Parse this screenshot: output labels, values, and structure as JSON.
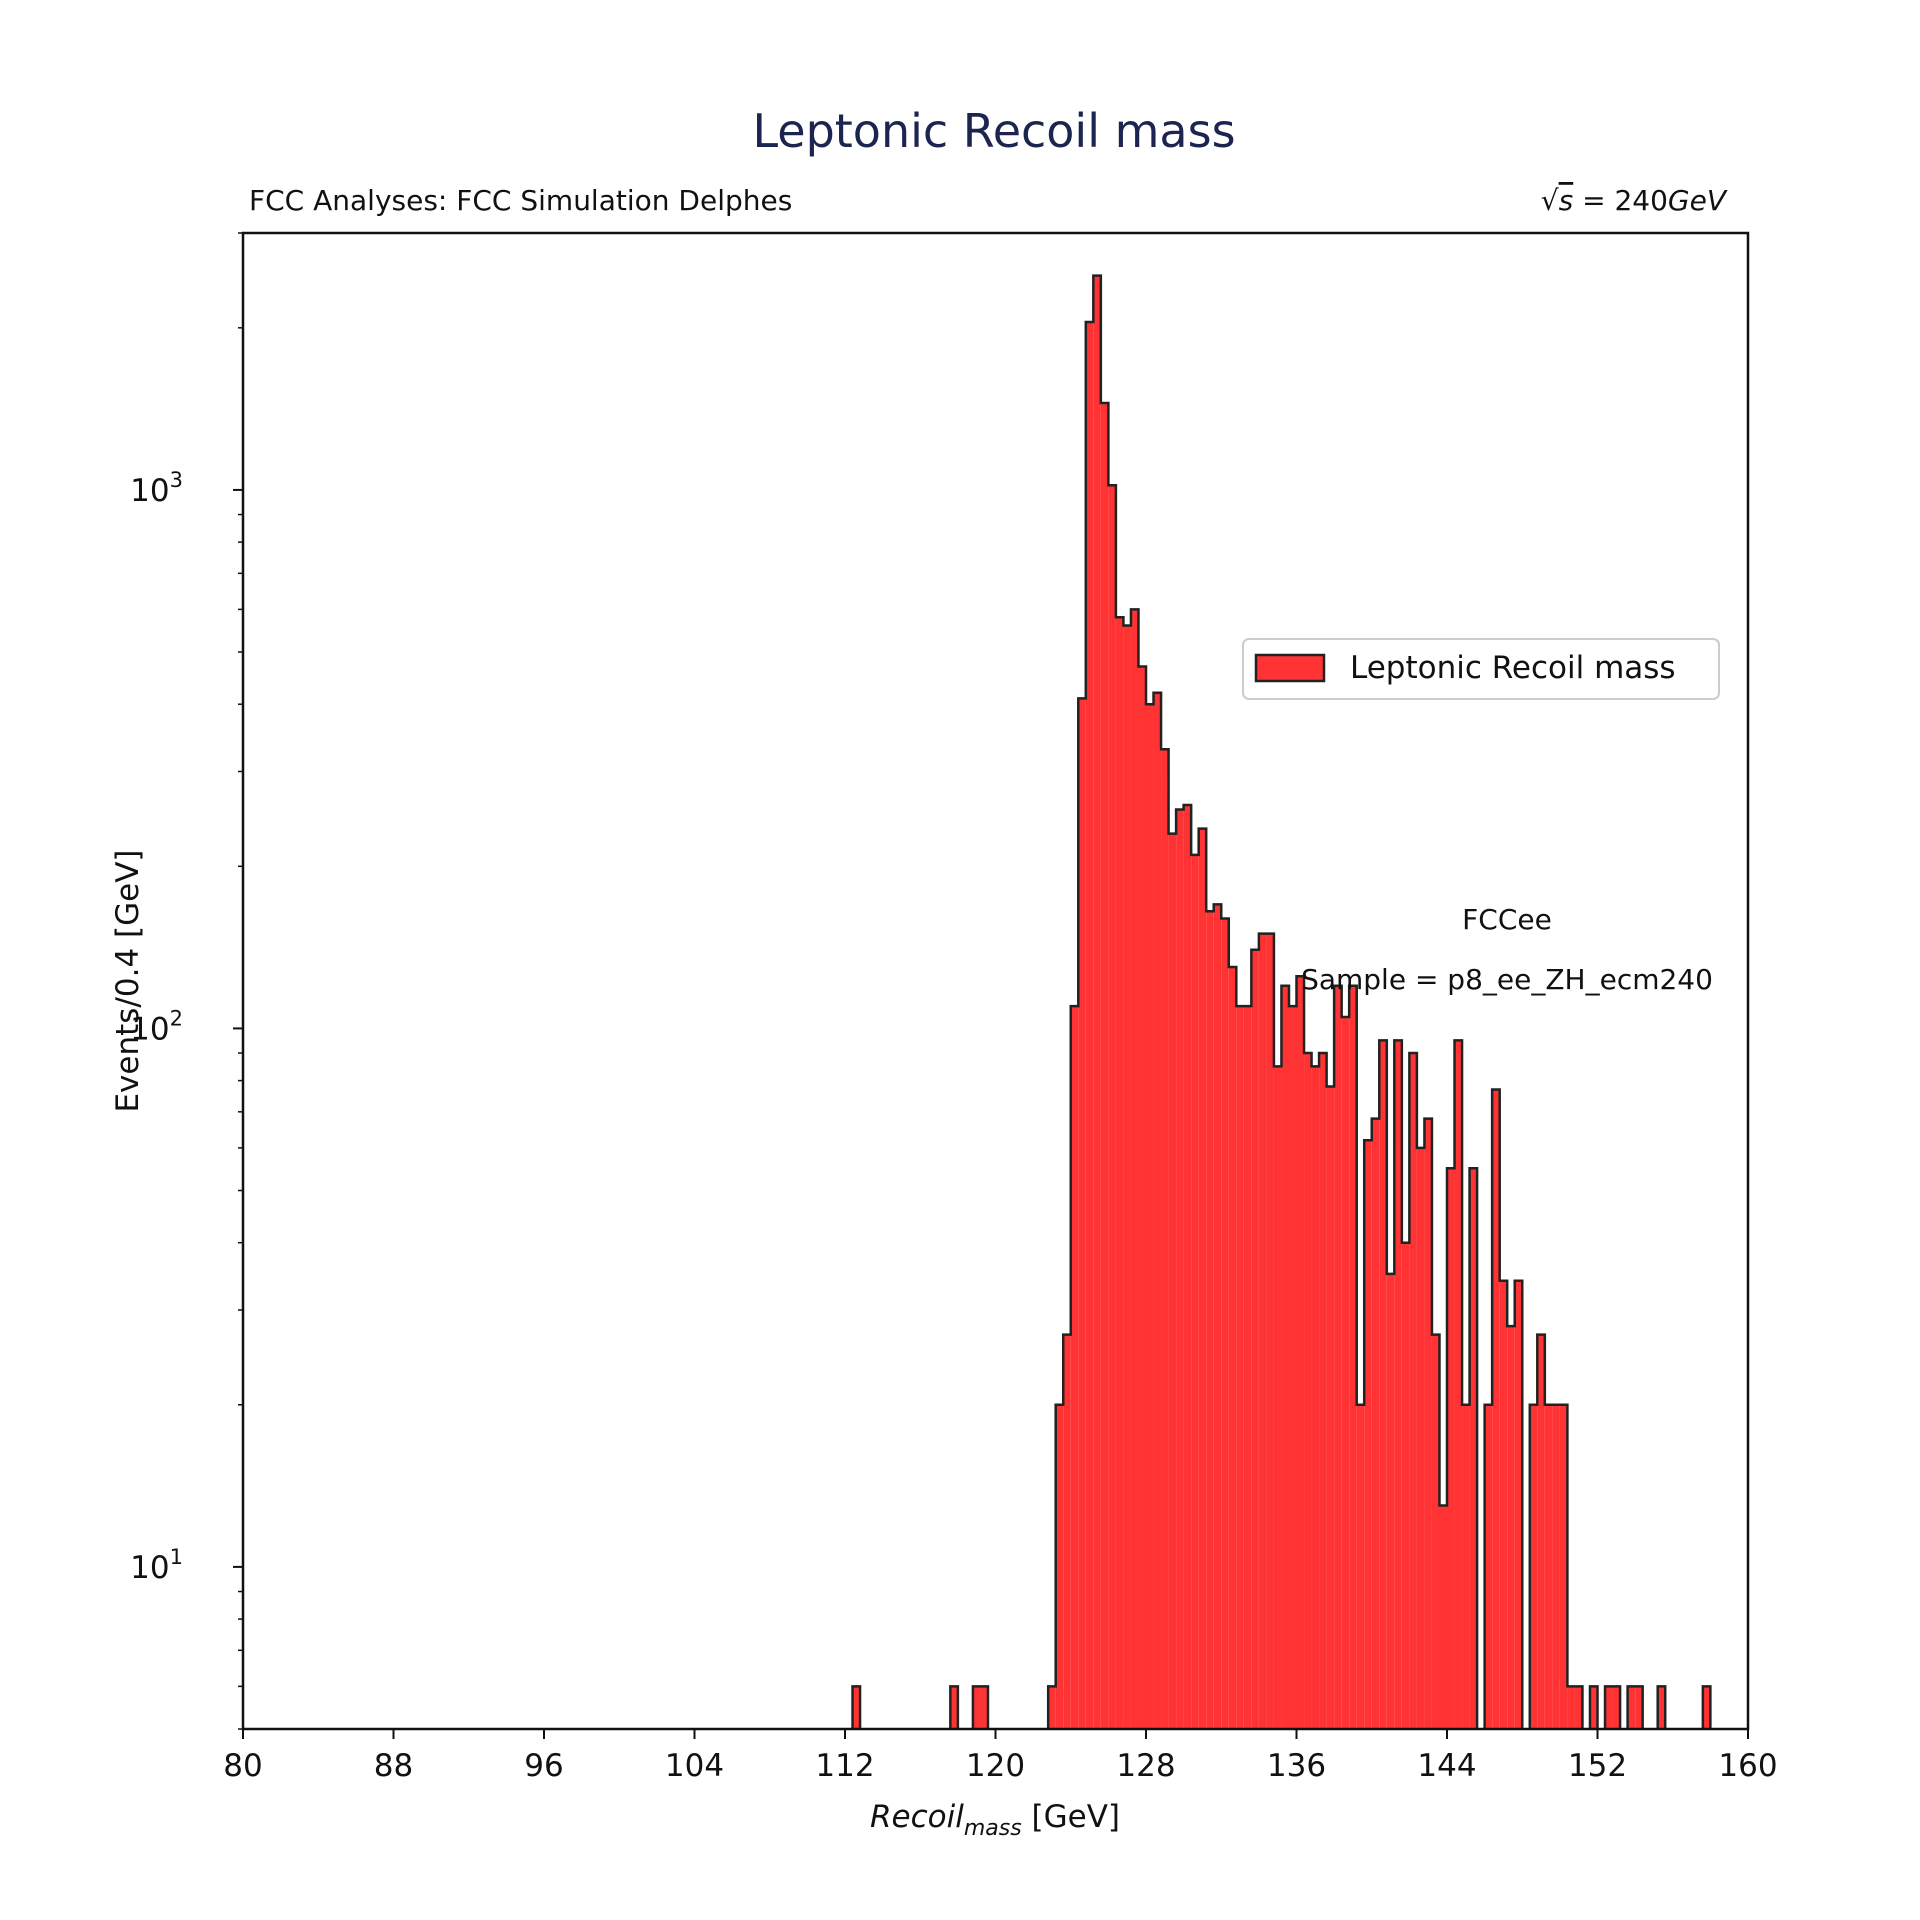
{
  "chart_data": {
    "type": "bar",
    "title": "Leptonic Recoil mass",
    "subtitle_left": "FCC Analyses: FCC Simulation Delphes",
    "subtitle_right_sqrt": "√",
    "subtitle_right_var": "s",
    "subtitle_right_eq": " = 240",
    "subtitle_right_unit": "GeV",
    "xlabel_main": "Recoil",
    "xlabel_sub": "mass",
    "xlabel_unit": " [GeV]",
    "ylabel": "Events/0.4 [GeV]",
    "xlim": [
      80,
      160
    ],
    "ylim": [
      5,
      3000
    ],
    "yscale": "log",
    "grid": false,
    "xticks": [
      "80",
      "88",
      "96",
      "104",
      "112",
      "120",
      "128",
      "136",
      "144",
      "152",
      "160"
    ],
    "yticks": [
      {
        "value": 10,
        "base": "10",
        "exp": "1"
      },
      {
        "value": 100,
        "base": "10",
        "exp": "2"
      },
      {
        "value": 1000,
        "base": "10",
        "exp": "3"
      }
    ],
    "bin_width": 0.4,
    "annotations": [
      "FCCee",
      "Sample = p8_ee_ZH_ecm240"
    ],
    "legend": {
      "label": "Leptonic Recoil mass",
      "position": "center-right"
    },
    "colors": {
      "fill": "#ff3333",
      "edge": "#222222"
    },
    "series": [
      {
        "name": "Leptonic Recoil mass",
        "bins": [
          [
            112.4,
            6
          ],
          [
            117.6,
            6
          ],
          [
            118.8,
            6
          ],
          [
            119.2,
            6
          ],
          [
            122.8,
            6
          ],
          [
            123.2,
            20
          ],
          [
            123.6,
            27
          ],
          [
            124.0,
            110
          ],
          [
            124.4,
            410
          ],
          [
            124.8,
            2050
          ],
          [
            125.2,
            2500
          ],
          [
            125.6,
            1450
          ],
          [
            126.0,
            1020
          ],
          [
            126.4,
            580
          ],
          [
            126.8,
            560
          ],
          [
            127.2,
            600
          ],
          [
            127.6,
            470
          ],
          [
            128.0,
            400
          ],
          [
            128.4,
            420
          ],
          [
            128.8,
            330
          ],
          [
            129.2,
            230
          ],
          [
            129.6,
            255
          ],
          [
            130.0,
            260
          ],
          [
            130.4,
            210
          ],
          [
            130.8,
            235
          ],
          [
            131.2,
            165
          ],
          [
            131.6,
            170
          ],
          [
            132.0,
            160
          ],
          [
            132.4,
            130
          ],
          [
            132.8,
            110
          ],
          [
            133.2,
            110
          ],
          [
            133.6,
            140
          ],
          [
            134.0,
            150
          ],
          [
            134.4,
            150
          ],
          [
            134.8,
            85
          ],
          [
            135.2,
            120
          ],
          [
            135.6,
            110
          ],
          [
            136.0,
            125
          ],
          [
            136.4,
            90
          ],
          [
            136.8,
            85
          ],
          [
            137.2,
            90
          ],
          [
            137.6,
            78
          ],
          [
            138.0,
            120
          ],
          [
            138.4,
            105
          ],
          [
            138.8,
            120
          ],
          [
            139.2,
            20
          ],
          [
            139.6,
            62
          ],
          [
            140.0,
            68
          ],
          [
            140.4,
            95
          ],
          [
            140.8,
            35
          ],
          [
            141.2,
            95
          ],
          [
            141.6,
            40
          ],
          [
            142.0,
            90
          ],
          [
            142.4,
            60
          ],
          [
            142.8,
            68
          ],
          [
            143.2,
            27
          ],
          [
            143.6,
            13
          ],
          [
            144.0,
            55
          ],
          [
            144.4,
            95
          ],
          [
            144.8,
            20
          ],
          [
            145.2,
            55
          ],
          [
            145.6,
            0
          ],
          [
            146.0,
            20
          ],
          [
            146.4,
            77
          ],
          [
            146.8,
            34
          ],
          [
            147.2,
            28
          ],
          [
            147.6,
            34
          ],
          [
            148.0,
            0
          ],
          [
            148.4,
            20
          ],
          [
            148.8,
            27
          ],
          [
            149.2,
            20
          ],
          [
            149.6,
            20
          ],
          [
            150.0,
            20
          ],
          [
            150.4,
            6
          ],
          [
            150.8,
            6
          ],
          [
            151.2,
            0
          ],
          [
            151.6,
            6
          ],
          [
            152.4,
            6
          ],
          [
            152.8,
            6
          ],
          [
            153.6,
            6
          ],
          [
            154.0,
            6
          ],
          [
            155.2,
            6
          ],
          [
            157.6,
            6
          ]
        ]
      }
    ]
  }
}
